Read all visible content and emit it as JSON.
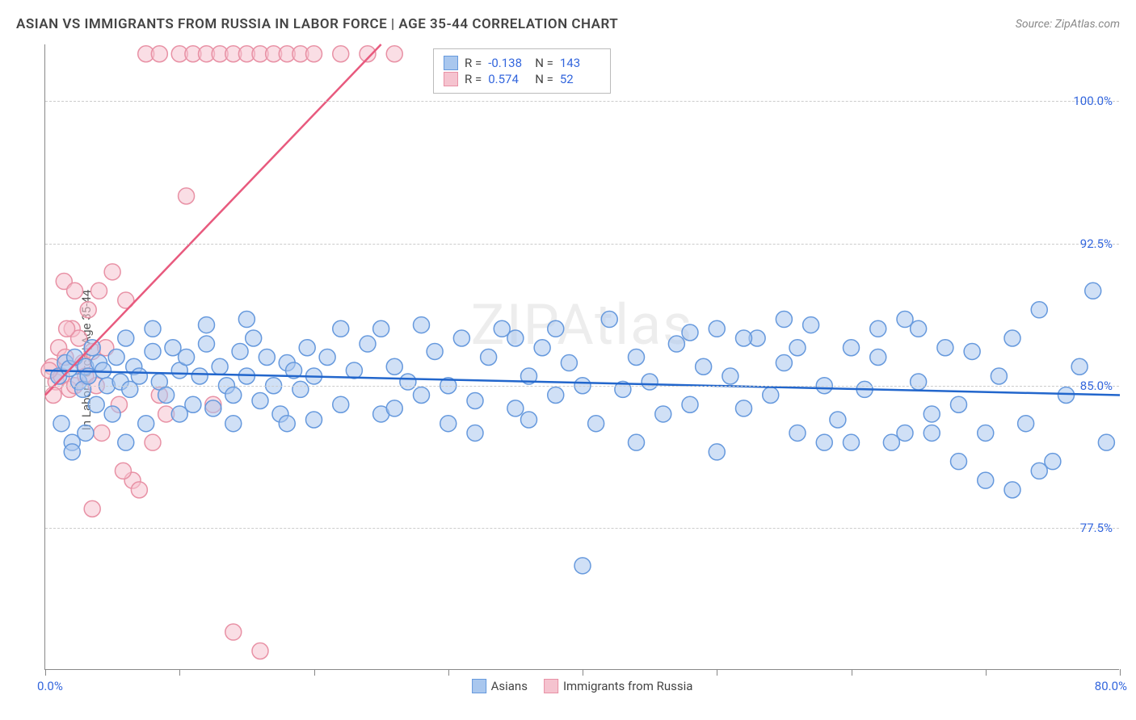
{
  "title": "ASIAN VS IMMIGRANTS FROM RUSSIA IN LABOR FORCE | AGE 35-44 CORRELATION CHART",
  "source": "Source: ZipAtlas.com",
  "ylabel": "In Labor Force | Age 35-44",
  "watermark": "ZIPAtlas",
  "chart": {
    "type": "scatter",
    "xlim": [
      0,
      80
    ],
    "ylim": [
      70,
      103
    ],
    "xticks": [
      0,
      10,
      20,
      30,
      40,
      50,
      60,
      70,
      80
    ],
    "yticks": [
      77.5,
      85.0,
      92.5,
      100.0
    ],
    "ytick_labels": [
      "77.5%",
      "85.0%",
      "92.5%",
      "100.0%"
    ],
    "xaxis_left_label": "0.0%",
    "xaxis_right_label": "80.0%",
    "background_color": "#ffffff",
    "grid_color": "#cccccc",
    "axis_color": "#888888",
    "label_color": "#3366dd",
    "marker_radius": 10,
    "marker_stroke_width": 1.5,
    "line_width": 2.5
  },
  "series": [
    {
      "name": "Asians",
      "color_fill": "#a9c7ee",
      "color_stroke": "#6699dd",
      "line_color": "#2266cc",
      "R": "-0.138",
      "N": "143",
      "trend": {
        "x1": 0,
        "y1": 85.8,
        "x2": 80,
        "y2": 84.5
      },
      "points": [
        [
          1,
          85.5
        ],
        [
          1.2,
          83
        ],
        [
          1.5,
          86.2
        ],
        [
          1.8,
          85.9
        ],
        [
          2,
          82
        ],
        [
          2.2,
          86.5
        ],
        [
          2.5,
          85.2
        ],
        [
          2.8,
          84.8
        ],
        [
          3,
          86
        ],
        [
          3.2,
          85.5
        ],
        [
          3.5,
          87
        ],
        [
          3.8,
          84
        ],
        [
          4,
          86.2
        ],
        [
          4.3,
          85.8
        ],
        [
          4.6,
          85
        ],
        [
          5,
          83.5
        ],
        [
          5.3,
          86.5
        ],
        [
          5.6,
          85.2
        ],
        [
          6,
          87.5
        ],
        [
          6.3,
          84.8
        ],
        [
          6.6,
          86
        ],
        [
          7,
          85.5
        ],
        [
          7.5,
          83
        ],
        [
          8,
          86.8
        ],
        [
          8.5,
          85.2
        ],
        [
          9,
          84.5
        ],
        [
          9.5,
          87
        ],
        [
          10,
          85.8
        ],
        [
          10.5,
          86.5
        ],
        [
          11,
          84
        ],
        [
          11.5,
          85.5
        ],
        [
          12,
          87.2
        ],
        [
          12.5,
          83.8
        ],
        [
          13,
          86
        ],
        [
          13.5,
          85
        ],
        [
          14,
          84.5
        ],
        [
          14.5,
          86.8
        ],
        [
          15,
          85.5
        ],
        [
          15.5,
          87.5
        ],
        [
          16,
          84.2
        ],
        [
          16.5,
          86.5
        ],
        [
          17,
          85
        ],
        [
          17.5,
          83.5
        ],
        [
          18,
          86.2
        ],
        [
          18.5,
          85.8
        ],
        [
          19,
          84.8
        ],
        [
          19.5,
          87
        ],
        [
          20,
          85.5
        ],
        [
          21,
          86.5
        ],
        [
          22,
          84
        ],
        [
          23,
          85.8
        ],
        [
          24,
          87.2
        ],
        [
          25,
          83.5
        ],
        [
          26,
          86
        ],
        [
          27,
          85.2
        ],
        [
          28,
          84.5
        ],
        [
          29,
          86.8
        ],
        [
          30,
          85
        ],
        [
          31,
          87.5
        ],
        [
          32,
          84.2
        ],
        [
          33,
          86.5
        ],
        [
          34,
          88
        ],
        [
          35,
          83.8
        ],
        [
          36,
          85.5
        ],
        [
          37,
          87
        ],
        [
          38,
          84.5
        ],
        [
          39,
          86.2
        ],
        [
          40,
          85
        ],
        [
          41,
          83
        ],
        [
          42,
          88.5
        ],
        [
          43,
          84.8
        ],
        [
          44,
          86.5
        ],
        [
          45,
          85.2
        ],
        [
          46,
          83.5
        ],
        [
          47,
          87.2
        ],
        [
          48,
          84
        ],
        [
          49,
          86
        ],
        [
          50,
          88
        ],
        [
          51,
          85.5
        ],
        [
          52,
          83.8
        ],
        [
          53,
          87.5
        ],
        [
          54,
          84.5
        ],
        [
          55,
          86.2
        ],
        [
          56,
          82.5
        ],
        [
          57,
          88.2
        ],
        [
          58,
          85
        ],
        [
          59,
          83.2
        ],
        [
          60,
          87
        ],
        [
          61,
          84.8
        ],
        [
          62,
          86.5
        ],
        [
          63,
          82
        ],
        [
          64,
          88.5
        ],
        [
          65,
          85.2
        ],
        [
          66,
          83.5
        ],
        [
          67,
          87
        ],
        [
          68,
          84
        ],
        [
          69,
          86.8
        ],
        [
          70,
          82.5
        ],
        [
          71,
          85.5
        ],
        [
          72,
          87.5
        ],
        [
          73,
          83
        ],
        [
          74,
          89
        ],
        [
          75,
          81
        ],
        [
          76,
          84.5
        ],
        [
          77,
          86
        ],
        [
          78,
          90
        ],
        [
          79,
          82
        ],
        [
          40,
          75.5
        ],
        [
          70,
          80
        ],
        [
          72,
          79.5
        ],
        [
          74,
          80.5
        ],
        [
          68,
          81
        ],
        [
          2,
          81.5
        ],
        [
          3,
          82.5
        ],
        [
          15,
          88.5
        ],
        [
          25,
          88
        ],
        [
          35,
          87.5
        ],
        [
          50,
          81.5
        ],
        [
          55,
          88.5
        ],
        [
          60,
          82
        ],
        [
          65,
          88
        ],
        [
          8,
          88
        ],
        [
          12,
          88.2
        ],
        [
          18,
          83
        ],
        [
          22,
          88
        ],
        [
          28,
          88.2
        ],
        [
          32,
          82.5
        ],
        [
          38,
          88
        ],
        [
          44,
          82
        ],
        [
          48,
          87.8
        ],
        [
          52,
          87.5
        ],
        [
          56,
          87
        ],
        [
          58,
          82
        ],
        [
          62,
          88
        ],
        [
          66,
          82.5
        ],
        [
          64,
          82.5
        ],
        [
          6,
          82
        ],
        [
          10,
          83.5
        ],
        [
          14,
          83
        ],
        [
          20,
          83.2
        ],
        [
          26,
          83.8
        ],
        [
          30,
          83
        ],
        [
          36,
          83.2
        ]
      ]
    },
    {
      "name": "Immigrants from Russia",
      "color_fill": "#f5c3cf",
      "color_stroke": "#e891a5",
      "line_color": "#e85a7e",
      "R": "0.574",
      "N": "52",
      "trend": {
        "x1": 0,
        "y1": 84.5,
        "x2": 25,
        "y2": 103
      },
      "points": [
        [
          0.5,
          86
        ],
        [
          0.8,
          85.2
        ],
        [
          1,
          87
        ],
        [
          1.2,
          85.5
        ],
        [
          1.5,
          86.5
        ],
        [
          1.8,
          84.8
        ],
        [
          2,
          88
        ],
        [
          2.2,
          85
        ],
        [
          2.5,
          87.5
        ],
        [
          2.8,
          86.2
        ],
        [
          3,
          85.5
        ],
        [
          3.2,
          89
        ],
        [
          3.5,
          86.8
        ],
        [
          3.8,
          85
        ],
        [
          4,
          90
        ],
        [
          4.5,
          87
        ],
        [
          5,
          91
        ],
        [
          5.5,
          84
        ],
        [
          6,
          89.5
        ],
        [
          6.5,
          80
        ],
        [
          7,
          79.5
        ],
        [
          7.5,
          102.5
        ],
        [
          8,
          82
        ],
        [
          8.5,
          102.5
        ],
        [
          9,
          83.5
        ],
        [
          10,
          102.5
        ],
        [
          10.5,
          95
        ],
        [
          11,
          102.5
        ],
        [
          12,
          102.5
        ],
        [
          12.5,
          84
        ],
        [
          13,
          102.5
        ],
        [
          14,
          102.5
        ],
        [
          15,
          102.5
        ],
        [
          16,
          102.5
        ],
        [
          14,
          72
        ],
        [
          16,
          71
        ],
        [
          17,
          102.5
        ],
        [
          18,
          102.5
        ],
        [
          19,
          102.5
        ],
        [
          20,
          102.5
        ],
        [
          22,
          102.5
        ],
        [
          24,
          102.5
        ],
        [
          26,
          102.5
        ],
        [
          0.3,
          85.8
        ],
        [
          0.6,
          84.5
        ],
        [
          1.4,
          90.5
        ],
        [
          4.2,
          82.5
        ],
        [
          5.8,
          80.5
        ],
        [
          3.5,
          78.5
        ],
        [
          2.2,
          90
        ],
        [
          1.6,
          88
        ],
        [
          8.5,
          84.5
        ]
      ]
    }
  ],
  "legend": {
    "bottom": [
      {
        "label": "Asians",
        "fill": "#a9c7ee",
        "stroke": "#6699dd"
      },
      {
        "label": "Immigrants from Russia",
        "fill": "#f5c3cf",
        "stroke": "#e891a5"
      }
    ]
  }
}
